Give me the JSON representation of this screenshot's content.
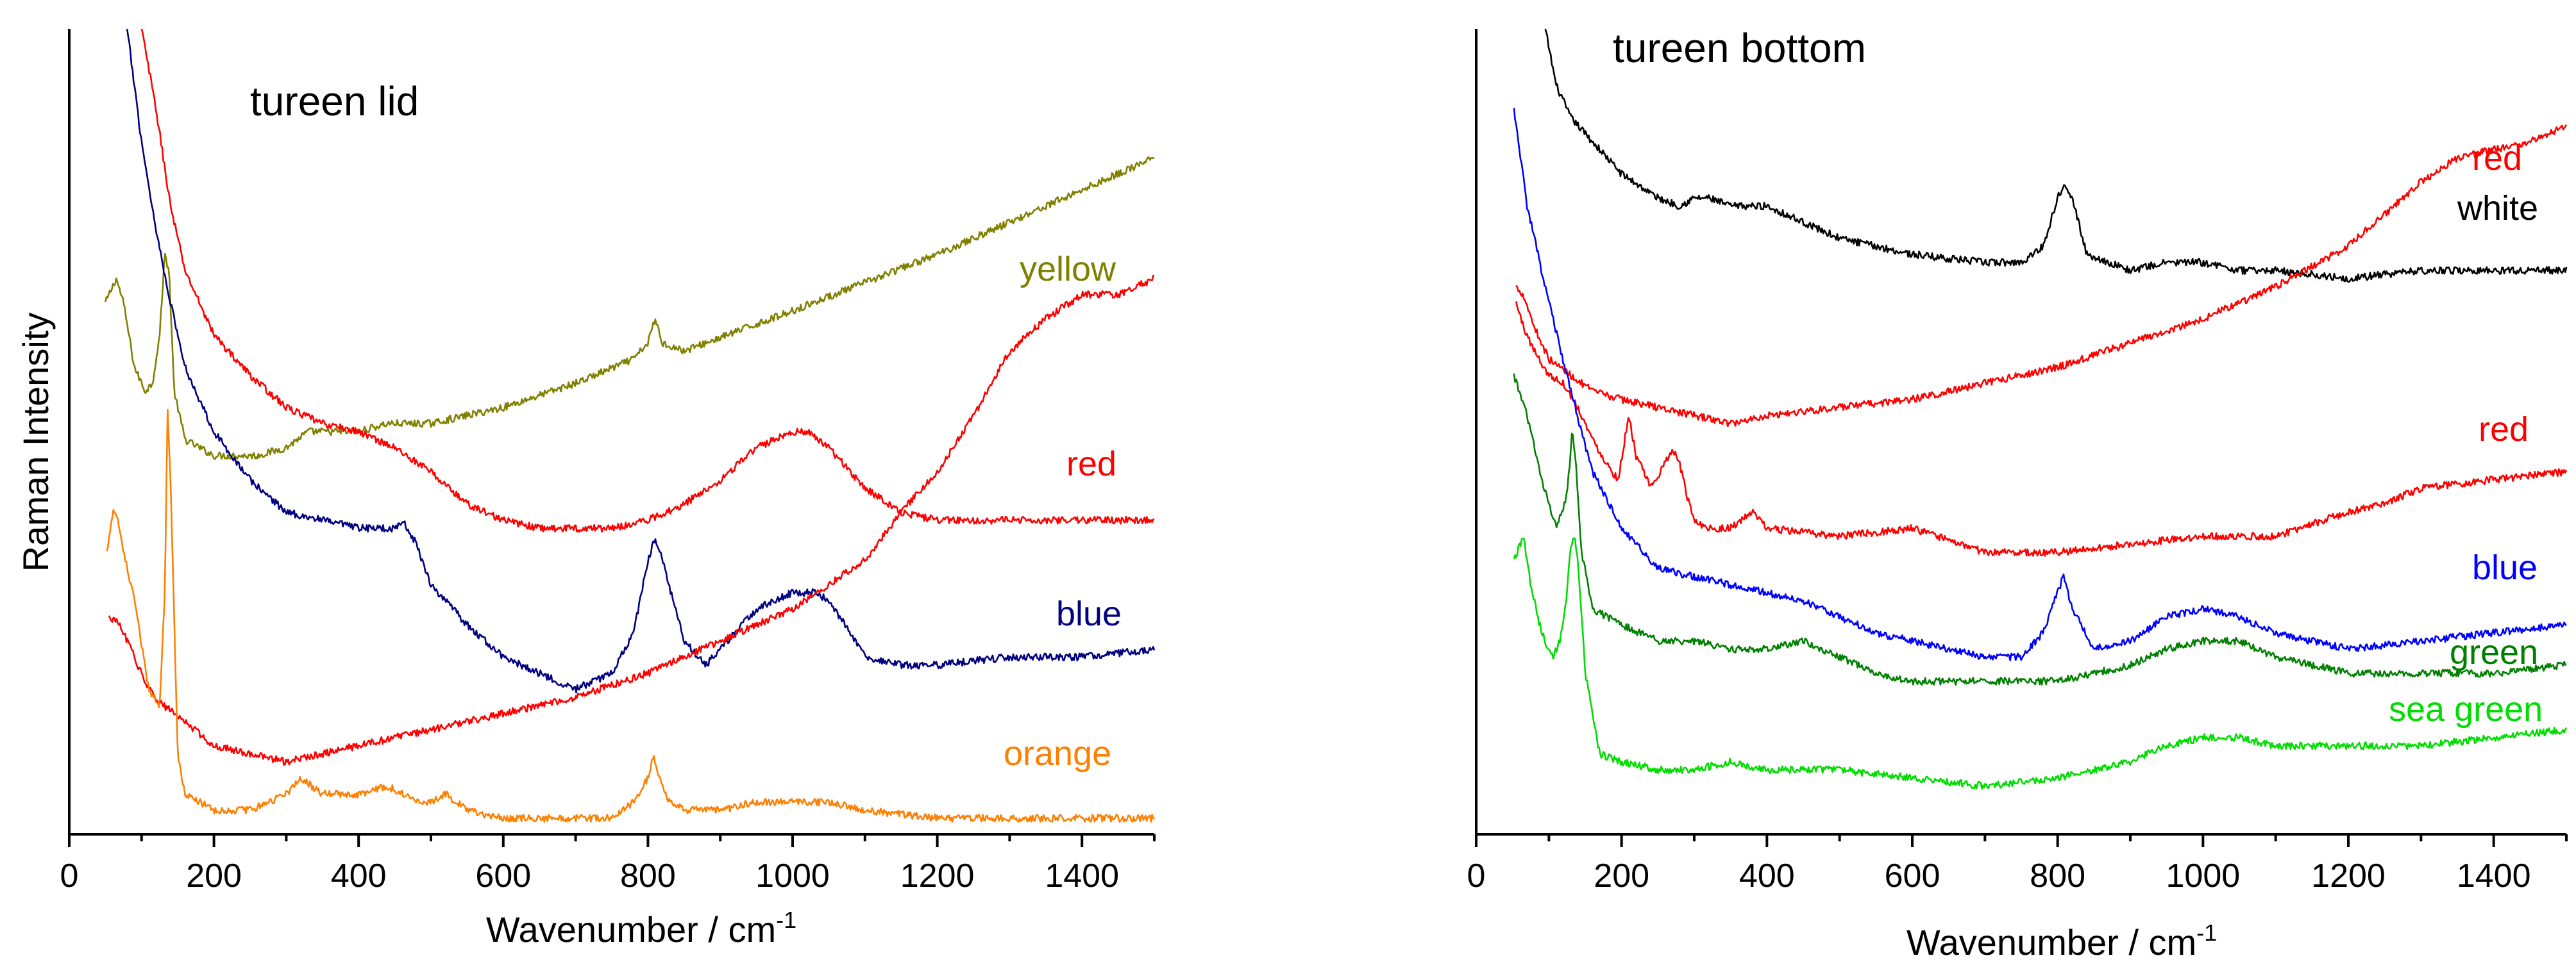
{
  "y_axis_label": "Raman Intensity",
  "chart_data": [
    {
      "type": "line",
      "title": "tureen lid",
      "xlabel": "Wavenumber / cm",
      "xlabel_superscript": "-1",
      "xlim": [
        0,
        1500
      ],
      "ylim": [
        0,
        100
      ],
      "xticks": [
        0,
        200,
        400,
        600,
        800,
        1000,
        1200,
        1400
      ],
      "series": [
        {
          "name": "yellow",
          "color": "#808000",
          "x": [
            50,
            60,
            65,
            75,
            90,
            105,
            115,
            125,
            132,
            138,
            145,
            160,
            200,
            260,
            300,
            330,
            400,
            440,
            500,
            600,
            700,
            780,
            800,
            810,
            820,
            850,
            1000,
            1200,
            1400,
            1500
          ],
          "y": [
            66,
            68,
            69,
            66,
            58,
            55,
            56,
            62,
            72,
            70,
            55,
            49,
            47,
            47,
            48,
            50,
            50,
            51,
            51,
            53,
            56,
            59,
            61,
            64,
            61,
            60,
            65,
            72,
            80,
            84
          ]
        },
        {
          "name": "red",
          "color": "#ff0000",
          "x": [
            100,
            120,
            140,
            160,
            200,
            250,
            300,
            350,
            400,
            450,
            500,
            550,
            600,
            650,
            700,
            750,
            800,
            850,
            900,
            950,
            1000,
            1020,
            1050,
            1100,
            1150,
            1200,
            1300,
            1400,
            1500
          ],
          "y": [
            100,
            90,
            78,
            70,
            62,
            57,
            53,
            51,
            50,
            48,
            45,
            41,
            39,
            38,
            38,
            38,
            39,
            41,
            44,
            48,
            50,
            50,
            48,
            43,
            40,
            39,
            39,
            39,
            39
          ]
        },
        {
          "name": "blue",
          "color": "#000080",
          "x": [
            80,
            100,
            120,
            140,
            160,
            200,
            250,
            300,
            350,
            400,
            430,
            450,
            460,
            480,
            500,
            550,
            600,
            650,
            700,
            750,
            780,
            800,
            810,
            820,
            850,
            880,
            900,
            950,
            1000,
            1030,
            1050,
            1080,
            1100,
            1150,
            1200,
            1300,
            1400,
            1500
          ],
          "y": [
            100,
            86,
            75,
            66,
            58,
            50,
            44,
            40,
            39,
            38,
            38,
            38,
            39,
            36,
            31,
            26,
            22,
            20,
            18,
            20,
            25,
            34,
            37,
            34,
            24,
            21,
            23,
            28,
            30,
            30,
            29,
            25,
            22,
            21,
            21,
            22,
            22,
            23
          ]
        },
        {
          "name": "red",
          "color": "#ff0000",
          "x": [
            55,
            70,
            90,
            110,
            130,
            160,
            200,
            250,
            300,
            400,
            500,
            600,
            700,
            800,
            900,
            1000,
            1100,
            1150,
            1200,
            1250,
            1300,
            1350,
            1400,
            1450,
            1500
          ],
          "y": [
            27,
            26,
            22,
            18,
            16,
            14,
            11,
            10,
            9,
            11,
            13,
            15,
            17,
            20,
            24,
            28,
            34,
            40,
            45,
            52,
            60,
            64,
            67,
            67,
            69
          ]
        },
        {
          "name": "orange",
          "color": "#ff8000",
          "x": [
            52,
            60,
            65,
            75,
            90,
            110,
            125,
            132,
            136,
            140,
            150,
            160,
            200,
            250,
            300,
            320,
            350,
            400,
            440,
            480,
            500,
            520,
            550,
            600,
            700,
            750,
            780,
            800,
            808,
            815,
            830,
            850,
            900,
            950,
            1000,
            1050,
            1100,
            1200,
            1300,
            1400,
            1500
          ],
          "y": [
            35,
            40,
            40,
            35,
            29,
            18,
            16,
            30,
            53,
            44,
            10,
            5,
            3,
            3,
            5,
            7,
            5,
            5,
            6,
            4,
            4,
            5,
            3,
            2,
            2,
            2,
            4,
            7,
            10,
            7,
            4,
            3,
            3,
            4,
            4,
            4,
            3,
            2,
            2,
            2,
            2
          ]
        }
      ],
      "labels": [
        {
          "text": "yellow",
          "color": "#808000"
        },
        {
          "text": "red",
          "color": "#ff0000"
        },
        {
          "text": "blue",
          "color": "#000080"
        },
        {
          "text": "orange",
          "color": "#ff8000"
        }
      ]
    },
    {
      "type": "line",
      "title": "tureen bottom",
      "xlabel": "Wavenumber / cm",
      "xlabel_superscript": "-1",
      "xlim": [
        0,
        1500
      ],
      "ylim": [
        0,
        100
      ],
      "xticks": [
        0,
        200,
        400,
        600,
        800,
        1000,
        1200,
        1400
      ],
      "series": [
        {
          "name": "white",
          "color": "#000000",
          "x": [
            95,
            110,
            130,
            160,
            200,
            250,
            280,
            300,
            320,
            350,
            400,
            450,
            500,
            550,
            600,
            700,
            750,
            780,
            800,
            810,
            820,
            840,
            870,
            900,
            950,
            1000,
            1050,
            1100,
            1200,
            1300,
            1400,
            1500
          ],
          "y": [
            100,
            93,
            89,
            86,
            82,
            79,
            78,
            79,
            79,
            78,
            78,
            76,
            74,
            73,
            72,
            71,
            71,
            73,
            79,
            81,
            79,
            72,
            71,
            70,
            71,
            71,
            70,
            70,
            69,
            70,
            70,
            70
          ]
        },
        {
          "name": "red",
          "color": "#ff0000",
          "x": [
            55,
            65,
            80,
            100,
            130,
            160,
            200,
            250,
            300,
            350,
            400,
            500,
            600,
            700,
            800,
            900,
            1000,
            1100,
            1200,
            1250,
            1300,
            1350,
            1400,
            1450,
            1500
          ],
          "y": [
            68,
            67,
            63,
            59,
            57,
            55,
            54,
            53,
            52,
            51,
            52,
            53,
            54,
            56,
            58,
            61,
            64,
            68,
            73,
            77,
            81,
            84,
            85,
            86,
            88
          ]
        },
        {
          "name": "red",
          "color": "#ff0000",
          "x": [
            55,
            65,
            80,
            100,
            120,
            140,
            160,
            180,
            195,
            210,
            220,
            240,
            260,
            270,
            280,
            290,
            300,
            320,
            350,
            380,
            400,
            500,
            600,
            700,
            800,
            900,
            1000,
            1100,
            1200,
            1250,
            1300,
            1400,
            1500
          ],
          "y": [
            66,
            63,
            60,
            57,
            56,
            53,
            49,
            46,
            44,
            52,
            47,
            43,
            46,
            48,
            46,
            42,
            39,
            38,
            38,
            40,
            38,
            37,
            38,
            35,
            35,
            36,
            37,
            37,
            40,
            41,
            43,
            44,
            45
          ]
        },
        {
          "name": "blue",
          "color": "#0000ff",
          "x": [
            52,
            70,
            100,
            130,
            160,
            200,
            250,
            300,
            350,
            400,
            450,
            500,
            550,
            600,
            650,
            700,
            750,
            780,
            800,
            808,
            820,
            850,
            900,
            950,
            1000,
            1050,
            1100,
            1200,
            1300,
            1400,
            1500
          ],
          "y": [
            90,
            78,
            66,
            55,
            45,
            38,
            33,
            32,
            31,
            30,
            29,
            27,
            25,
            24,
            23,
            22,
            22,
            25,
            30,
            32,
            28,
            23,
            24,
            27,
            28,
            27,
            25,
            23,
            24,
            25,
            26
          ]
        },
        {
          "name": "green",
          "color": "#008000",
          "x": [
            52,
            70,
            90,
            110,
            125,
            132,
            138,
            145,
            160,
            200,
            250,
            300,
            350,
            400,
            450,
            470,
            500,
            550,
            600,
            700,
            800,
            900,
            950,
            1000,
            1050,
            1100,
            1200,
            1300,
            1400,
            1500
          ],
          "y": [
            57,
            52,
            44,
            38,
            42,
            50,
            45,
            35,
            28,
            26,
            24,
            24,
            23,
            23,
            24,
            23,
            22,
            20,
            19,
            19,
            19,
            21,
            23,
            24,
            24,
            22,
            20,
            20,
            20,
            21
          ]
        },
        {
          "name": "sea green",
          "color": "#00dd00",
          "x": [
            52,
            60,
            65,
            75,
            90,
            105,
            115,
            125,
            130,
            135,
            140,
            150,
            170,
            200,
            250,
            300,
            350,
            400,
            500,
            600,
            700,
            800,
            900,
            950,
            1000,
            1050,
            1100,
            1200,
            1300,
            1400,
            1500
          ],
          "y": [
            34,
            36,
            37,
            31,
            25,
            22,
            24,
            30,
            36,
            37,
            34,
            20,
            10,
            9,
            8,
            8,
            9,
            8,
            8,
            7,
            6,
            7,
            9,
            11,
            12,
            12,
            11,
            11,
            11,
            12,
            13
          ]
        }
      ],
      "labels": [
        {
          "text": "red",
          "color": "#ff0000"
        },
        {
          "text": "white",
          "color": "#000000"
        },
        {
          "text": "red",
          "color": "#ff0000"
        },
        {
          "text": "blue",
          "color": "#0000ff"
        },
        {
          "text": "green",
          "color": "#008000"
        },
        {
          "text": "sea green",
          "color": "#00dd00"
        }
      ]
    }
  ]
}
